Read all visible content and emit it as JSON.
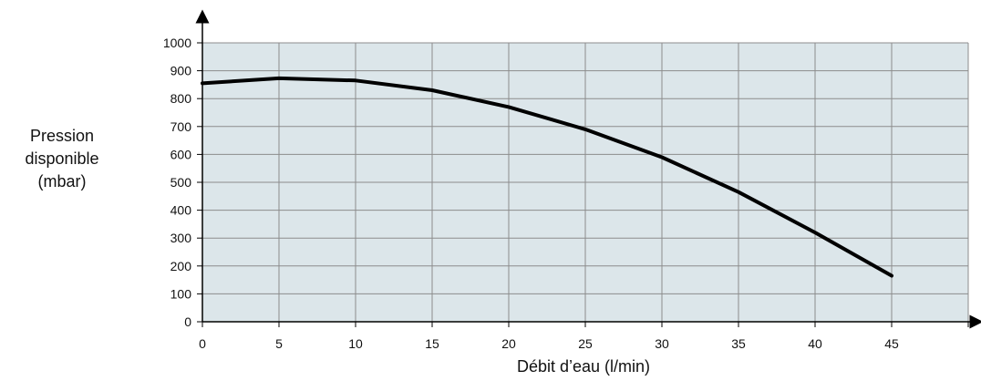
{
  "chart_data": {
    "type": "line",
    "title": "",
    "xlabel": "Débit d’eau (l/min)",
    "ylabel_lines": [
      "Pression",
      "disponible",
      "(mbar)"
    ],
    "xlim": [
      0,
      50
    ],
    "ylim": [
      0,
      1000
    ],
    "x_ticks": [
      "0",
      "5",
      "10",
      "15",
      "20",
      "25",
      "30",
      "35",
      "40",
      "45"
    ],
    "y_ticks": [
      "0",
      "100",
      "200",
      "300",
      "400",
      "500",
      "600",
      "700",
      "800",
      "900",
      "1000"
    ],
    "grid": true,
    "legend": "none",
    "colors": {
      "plot_background": "#dce6ea",
      "grid": "#8c8c8c",
      "line": "#000000",
      "axis": "#000000"
    },
    "series": [
      {
        "x": [
          0,
          5,
          10,
          15,
          20,
          25,
          30,
          35,
          40,
          45
        ],
        "y": [
          855,
          873,
          865,
          830,
          770,
          690,
          590,
          465,
          320,
          165
        ]
      }
    ]
  }
}
